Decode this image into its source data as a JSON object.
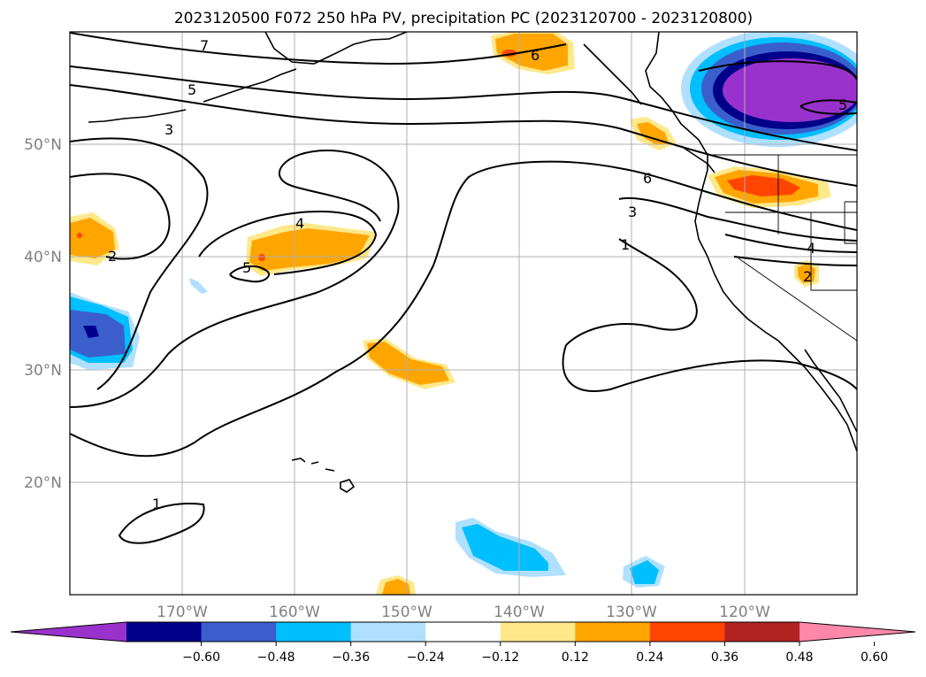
{
  "title": "2023120500 F072 250 hPa PV, precipitation PC (2023120700 - 2023120800)",
  "map": {
    "lon_labels": [
      "170°W",
      "160°W",
      "150°W",
      "140°W",
      "130°W",
      "120°W"
    ],
    "lat_labels": [
      "50°N",
      "40°N",
      "30°N",
      "20°N"
    ],
    "contour_labels": [
      "7",
      "5",
      "3",
      "2",
      "4",
      "5",
      "6",
      "3",
      "1",
      "1",
      "6",
      "5",
      "4",
      "2"
    ],
    "gridlines": true
  },
  "colorbar": {
    "ticks": [
      "−0.60",
      "−0.48",
      "−0.36",
      "−0.24",
      "−0.12",
      "0.12",
      "0.24",
      "0.36",
      "0.48",
      "0.60"
    ],
    "colors": [
      "#9932cc",
      "#00008b",
      "#3a5fcd",
      "#00bfff",
      "#b0e0ff",
      "#ffffff",
      "#ffe88a",
      "#ffa500",
      "#ff4500",
      "#b22222",
      "#ff88aa"
    ],
    "extend": "both"
  },
  "palette": {
    "neg_strong": "#9932cc",
    "neg_dark": "#00008b",
    "neg_mid": "#3a5fcd",
    "neg_light": "#00bfff",
    "neg_pale": "#b0e0ff",
    "pos_pale": "#ffe88a",
    "pos_mid": "#ffa500",
    "pos_strong": "#ff4500"
  }
}
